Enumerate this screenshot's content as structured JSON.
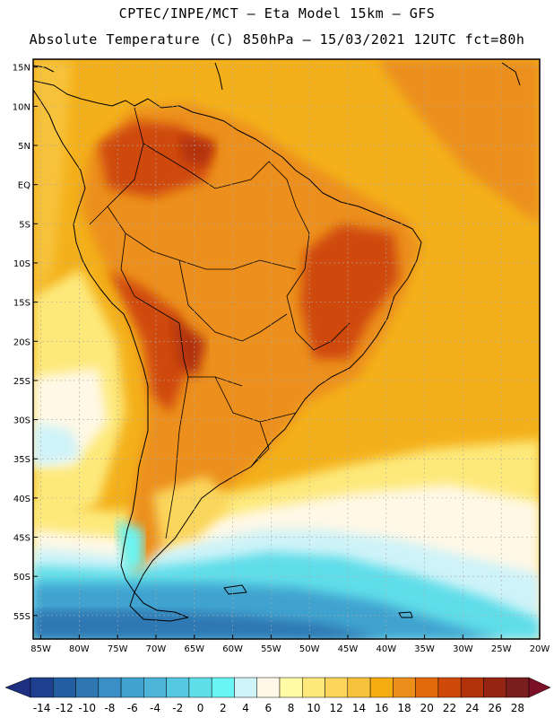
{
  "header": {
    "line1": "CPTEC/INPE/MCT –  Eta Model 15km – GFS",
    "line2": "Absolute Temperature (C) 850hPa – 15/03/2021 12UTC fct=80h"
  },
  "map": {
    "lon_range": [
      -86,
      -20
    ],
    "lat_range": [
      -58,
      16
    ],
    "lat_labels": [
      "15N",
      "10N",
      "5N",
      "EQ",
      "5S",
      "10S",
      "15S",
      "20S",
      "25S",
      "30S",
      "35S",
      "40S",
      "45S",
      "50S",
      "55S"
    ],
    "lat_values": [
      15,
      10,
      5,
      0,
      -5,
      -10,
      -15,
      -20,
      -25,
      -30,
      -35,
      -40,
      -45,
      -50,
      -55
    ],
    "lon_labels": [
      "85W",
      "80W",
      "75W",
      "70W",
      "65W",
      "60W",
      "55W",
      "50W",
      "45W",
      "40W",
      "35W",
      "30W",
      "25W",
      "20W"
    ],
    "lon_values": [
      -85,
      -80,
      -75,
      -70,
      -65,
      -60,
      -55,
      -50,
      -45,
      -40,
      -35,
      -30,
      -25,
      -20
    ],
    "grid": true
  },
  "colorbar": {
    "labels": [
      "-14",
      "-12",
      "-10",
      "-8",
      "-6",
      "-4",
      "-2",
      "0",
      "2",
      "4",
      "6",
      "8",
      "10",
      "12",
      "14",
      "16",
      "18",
      "20",
      "22",
      "24",
      "26",
      "28"
    ],
    "colors": [
      "#1f3f8f",
      "#235fa0",
      "#2f77b3",
      "#3a8fc6",
      "#40a3cf",
      "#4db6d8",
      "#55c8e2",
      "#5fdde9",
      "#6af5f5",
      "#cef3f8",
      "#fff8e6",
      "#fffaa6",
      "#fde97a",
      "#fbd65b",
      "#f7c23b",
      "#f4ac10",
      "#ec8f1a",
      "#e26a0a",
      "#cf4a08",
      "#b2330a",
      "#952512",
      "#7a1d1e"
    ],
    "low_arrow_color": "#1c2f80",
    "high_arrow_color": "#7a0f26"
  }
}
